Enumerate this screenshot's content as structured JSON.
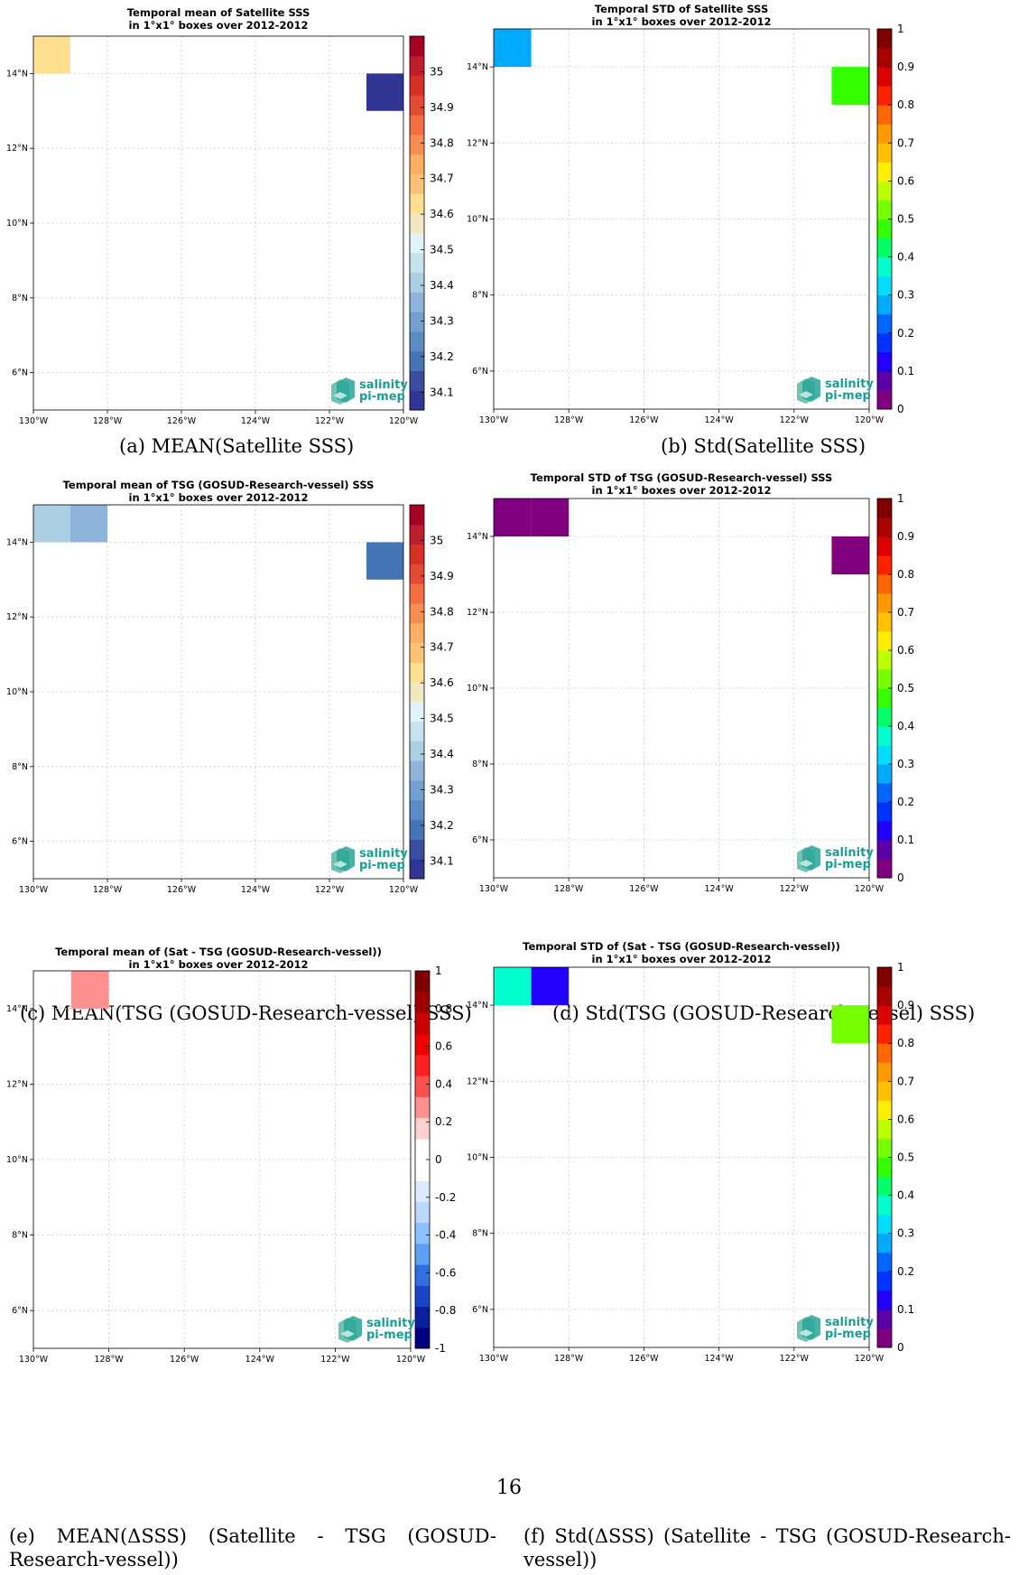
{
  "page": {
    "number": "16"
  },
  "x_ticks": [
    "130°W",
    "128°W",
    "126°W",
    "124°W",
    "122°W",
    "120°W"
  ],
  "y_ticks": [
    "6°N",
    "8°N",
    "10°N",
    "12°N",
    "14°N"
  ],
  "logo": {
    "line1": "salinity",
    "line2": "pi-mep"
  },
  "colors": {
    "sss_colormap": [
      "#313695",
      "#3a4d9f",
      "#4575b4",
      "#5b8bc2",
      "#74a0cf",
      "#8fb4d9",
      "#abd0e4",
      "#c5e2ed",
      "#e0f3f8",
      "#f1e8c0",
      "#fee090",
      "#fdc276",
      "#fdae61",
      "#f88d52",
      "#f46d43",
      "#e34a33",
      "#d73027",
      "#be1e2d",
      "#a50026"
    ],
    "std_colormap": [
      "#800080",
      "#5c00a8",
      "#2200ff",
      "#0033ff",
      "#0066ff",
      "#00aaff",
      "#00ddff",
      "#00ffcc",
      "#00ff66",
      "#33ff00",
      "#77ff00",
      "#bbff00",
      "#ffee00",
      "#ffc000",
      "#ff9900",
      "#ff6600",
      "#ff2200",
      "#dd0000",
      "#aa0000",
      "#800000"
    ],
    "diff_colormap": [
      "#00007f",
      "#0a1fa0",
      "#1845c5",
      "#2f6fe0",
      "#5aa0f5",
      "#8cc0ff",
      "#bcd8ff",
      "#dde9ff",
      "#ffffff",
      "#ffffff",
      "#ffd0d0",
      "#ff9090",
      "#ff5050",
      "#ff2020",
      "#ee0000",
      "#cc0000",
      "#a00000",
      "#7f0000"
    ]
  },
  "chart_data": [
    {
      "type": "heatmap",
      "title": "Temporal mean of Satellite SSS",
      "subtitle": "in 1°x1° boxes over 2012-2012",
      "caption": "(a) MEAN(Satellite SSS)",
      "xlim": [
        -130,
        -120
      ],
      "ylim": [
        5,
        15
      ],
      "colorbar": {
        "min": 34.05,
        "max": 35.1,
        "ticks": [
          "34.1",
          "34.2",
          "34.3",
          "34.4",
          "34.5",
          "34.6",
          "34.7",
          "34.8",
          "34.9",
          "35"
        ],
        "colormap": "sss"
      },
      "cells": [
        {
          "lon": -130,
          "lat": 14,
          "value": 34.62
        },
        {
          "lon": -121,
          "lat": 13,
          "value": 34.1
        }
      ]
    },
    {
      "type": "heatmap",
      "title": "Temporal STD of Satellite SSS",
      "subtitle": "in 1°x1° boxes over 2012-2012",
      "caption": "(b) Std(Satellite SSS)",
      "xlim": [
        -130,
        -120
      ],
      "ylim": [
        5,
        15
      ],
      "colorbar": {
        "min": 0,
        "max": 1,
        "ticks": [
          "0",
          "0.1",
          "0.2",
          "0.3",
          "0.4",
          "0.5",
          "0.6",
          "0.7",
          "0.8",
          "0.9",
          "1"
        ],
        "colormap": "std"
      },
      "cells": [
        {
          "lon": -130,
          "lat": 14,
          "value": 0.29
        },
        {
          "lon": -121,
          "lat": 13,
          "value": 0.46
        }
      ]
    },
    {
      "type": "heatmap",
      "title": "Temporal mean of TSG (GOSUD-Research-vessel) SSS",
      "subtitle": "in 1°x1° boxes over 2012-2012",
      "caption": "(c) MEAN(TSG (GOSUD-Research-vessel) SSS)",
      "xlim": [
        -130,
        -120
      ],
      "ylim": [
        5,
        15
      ],
      "colorbar": {
        "min": 34.05,
        "max": 35.1,
        "ticks": [
          "34.1",
          "34.2",
          "34.3",
          "34.4",
          "34.5",
          "34.6",
          "34.7",
          "34.8",
          "34.9",
          "35"
        ],
        "colormap": "sss"
      },
      "cells": [
        {
          "lon": -130,
          "lat": 14,
          "value": 34.42
        },
        {
          "lon": -129,
          "lat": 14,
          "value": 34.38
        },
        {
          "lon": -121,
          "lat": 13,
          "value": 34.18
        }
      ]
    },
    {
      "type": "heatmap",
      "title": "Temporal STD of TSG (GOSUD-Research-vessel) SSS",
      "subtitle": "in 1°x1° boxes over 2012-2012",
      "caption": "(d) Std(TSG (GOSUD-Research-vessel) SSS)",
      "xlim": [
        -130,
        -120
      ],
      "ylim": [
        5,
        15
      ],
      "colorbar": {
        "min": 0,
        "max": 1,
        "ticks": [
          "0",
          "0.1",
          "0.2",
          "0.3",
          "0.4",
          "0.5",
          "0.6",
          "0.7",
          "0.8",
          "0.9",
          "1"
        ],
        "colormap": "std"
      },
      "cells": [
        {
          "lon": -130,
          "lat": 14,
          "value": 0.02
        },
        {
          "lon": -129,
          "lat": 14,
          "value": 0.02
        },
        {
          "lon": -121,
          "lat": 13,
          "value": 0.02
        }
      ]
    },
    {
      "type": "heatmap",
      "title": "Temporal mean of (Sat - TSG (GOSUD-Research-vessel))",
      "subtitle": "in 1°x1° boxes over 2012-2012",
      "caption": "(e) MEAN(ΔSSS) (Satellite - TSG (GOSUD-Research-vessel))",
      "xlim": [
        -130,
        -120
      ],
      "ylim": [
        5,
        15
      ],
      "colorbar": {
        "min": -1,
        "max": 1,
        "ticks": [
          "-1",
          "-0.8",
          "-0.6",
          "-0.4",
          "-0.2",
          "0",
          "0.2",
          "0.4",
          "0.6",
          "0.8",
          "1"
        ],
        "colormap": "diff"
      },
      "cells": [
        {
          "lon": -129,
          "lat": 14,
          "value": 0.25
        }
      ]
    },
    {
      "type": "heatmap",
      "title": "Temporal STD of (Sat - TSG (GOSUD-Research-vessel))",
      "subtitle": "in 1°x1° boxes over 2012-2012",
      "caption": "(f) Std(ΔSSS) (Satellite - TSG (GOSUD-Research-vessel))",
      "xlim": [
        -130,
        -120
      ],
      "ylim": [
        5,
        15
      ],
      "colorbar": {
        "min": 0,
        "max": 1,
        "ticks": [
          "0",
          "0.1",
          "0.2",
          "0.3",
          "0.4",
          "0.5",
          "0.6",
          "0.7",
          "0.8",
          "0.9",
          "1"
        ],
        "colormap": "std"
      },
      "cells": [
        {
          "lon": -130,
          "lat": 14,
          "value": 0.37
        },
        {
          "lon": -129,
          "lat": 14,
          "value": 0.12
        },
        {
          "lon": -121,
          "lat": 13,
          "value": 0.52
        }
      ]
    }
  ]
}
